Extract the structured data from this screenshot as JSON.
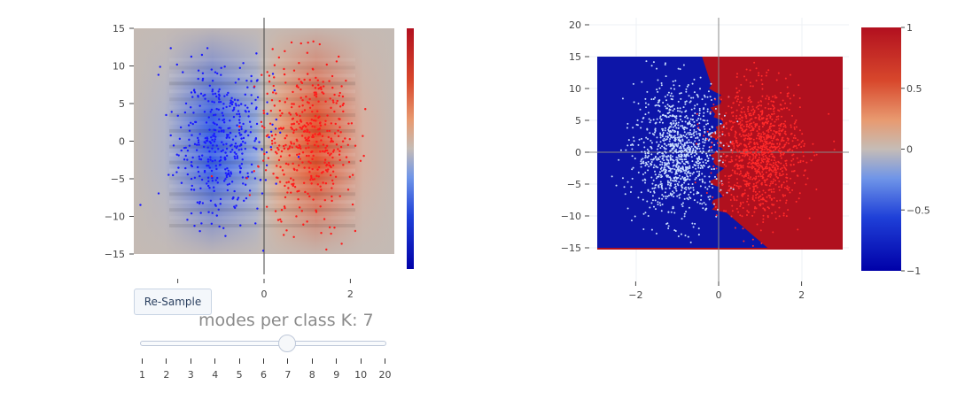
{
  "controls": {
    "resample_label": "Re-Sample",
    "slider_title": "modes per class K: 7",
    "slider_value": 7,
    "slider_steps": [
      "1",
      "2",
      "3",
      "4",
      "5",
      "6",
      "7",
      "8",
      "9",
      "10",
      "20"
    ]
  },
  "colors": {
    "class_neg": "#1a1aff",
    "class_pos": "#ff1a1a",
    "test_points_neg": "#c8dcff",
    "test_points_pos": "#ff2a2a",
    "colorscale": [
      "#0000a8",
      "#1f40d8",
      "#6f95e8",
      "#c5bcb6",
      "#e89a70",
      "#d8482c",
      "#b2101f"
    ]
  },
  "chart_data": [
    {
      "type": "heatmap",
      "description_role": "class-probability surface with training samples",
      "x_ticks": [
        "0",
        "2"
      ],
      "y_ticks": [
        "15",
        "10",
        "5",
        "0",
        "−5",
        "−10",
        "−15"
      ],
      "xlim": [
        -3.1,
        3.1
      ],
      "ylim": [
        -15,
        15
      ],
      "z_range": [
        -1,
        1
      ],
      "colorbar": true,
      "series": [
        {
          "class": "negative",
          "x_center": -1,
          "x_spread": 0.55,
          "y_spread": 5.5,
          "count": 420
        },
        {
          "class": "positive",
          "x_center": 1,
          "x_spread": 0.55,
          "y_spread": 5.5,
          "count": 420
        }
      ]
    },
    {
      "type": "heatmap",
      "description_role": "decision regions with test samples",
      "x_ticks": [
        "−2",
        "0",
        "2"
      ],
      "y_ticks": [
        "20",
        "15",
        "10",
        "5",
        "0",
        "−5",
        "−10",
        "−15"
      ],
      "xlim": [
        -3.1,
        3.1
      ],
      "ylim": [
        -16.5,
        21
      ],
      "colorbar_ticks": [
        "1",
        "0.5",
        "0",
        "−0.5",
        "−1"
      ],
      "z_range": [
        -1,
        1
      ],
      "series": [
        {
          "class": "negative",
          "x_center": -1,
          "x_spread": 0.5,
          "y_spread": 5,
          "count": 1100
        },
        {
          "class": "positive",
          "x_center": 1,
          "x_spread": 0.5,
          "y_spread": 5,
          "count": 1100
        }
      ]
    }
  ]
}
